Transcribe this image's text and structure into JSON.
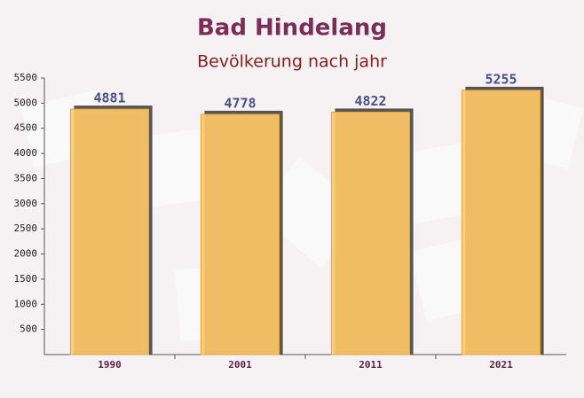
{
  "chart_data": {
    "type": "bar",
    "title": "Bad Hindelang",
    "subtitle": "Bevölkerung nach jahr",
    "categories": [
      "1990",
      "2001",
      "2011",
      "2021"
    ],
    "values": [
      4881,
      4778,
      4822,
      5255
    ],
    "color": "#ffc966",
    "ylim": [
      0,
      5500
    ],
    "yticks": [
      500,
      1000,
      1500,
      2000,
      2500,
      3000,
      3500,
      4000,
      4500,
      5000,
      5500
    ],
    "grid": false
  }
}
